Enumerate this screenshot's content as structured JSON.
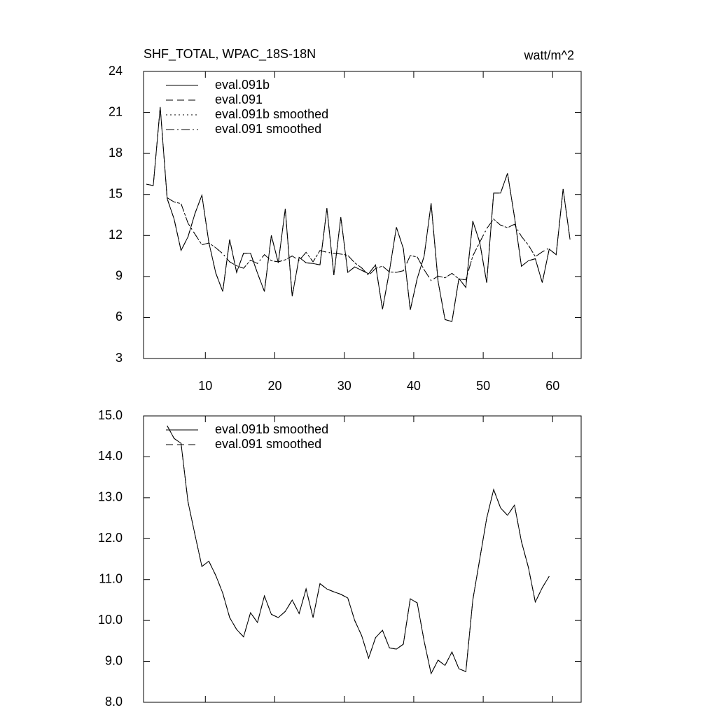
{
  "chart_data": [
    {
      "type": "line",
      "title": "SHF_TOTAL, WPAC_18S-18N",
      "subtitle": "watt/m^2",
      "legend": "upper left",
      "x": [
        1.5,
        2.5,
        3.5,
        4.5,
        5.5,
        6.5,
        7.5,
        8.5,
        9.5,
        10.5,
        11.5,
        12.5,
        13.5,
        14.5,
        15.5,
        16.5,
        17.5,
        18.5,
        19.5,
        20.5,
        21.5,
        22.5,
        23.5,
        24.5,
        25.5,
        26.5,
        27.5,
        28.5,
        29.5,
        30.5,
        31.5,
        32.5,
        33.5,
        34.5,
        35.5,
        36.5,
        37.5,
        38.5,
        39.5,
        40.5,
        41.5,
        42.5,
        43.5,
        44.5,
        45.5,
        46.5,
        47.5,
        48.5,
        49.5,
        50.5,
        51.5,
        52.5,
        53.5,
        54.5,
        55.5,
        56.5,
        57.5,
        58.5,
        59.5,
        60.5,
        61.5,
        62.5
      ],
      "xlim": [
        1.1,
        64.1
      ],
      "xticks": [
        10,
        20,
        30,
        40,
        50,
        60
      ],
      "ylim": [
        3,
        24
      ],
      "yticks": [
        3,
        6,
        9,
        12,
        15,
        18,
        21,
        24
      ],
      "series": [
        {
          "name": "eval.091b",
          "color": "#000000",
          "dash": "solid",
          "values": [
            15.75,
            15.65,
            21.4,
            14.7,
            13.2,
            10.9,
            11.9,
            13.6,
            14.95,
            11.5,
            9.25,
            7.9,
            11.7,
            9.3,
            10.7,
            10.7,
            9.25,
            7.9,
            12.0,
            10.0,
            13.95,
            7.55,
            10.4,
            10.0,
            9.95,
            9.85,
            14.0,
            9.1,
            13.35,
            9.3,
            9.7,
            9.45,
            9.2,
            9.85,
            6.6,
            9.4,
            12.6,
            11.05,
            6.55,
            8.85,
            10.5,
            14.35,
            8.65,
            5.85,
            5.7,
            8.85,
            8.2,
            13.05,
            11.5,
            8.55,
            15.1,
            15.1,
            16.55,
            13.35,
            9.75,
            10.15,
            10.3,
            8.55,
            11.0,
            10.6,
            15.4,
            11.7
          ]
        },
        {
          "name": "eval.091",
          "color": "#000000",
          "dash": "dashed",
          "values": [
            15.75,
            15.65,
            21.4,
            14.7,
            13.2,
            10.9,
            11.9,
            13.6,
            14.95,
            11.5,
            9.25,
            7.9,
            11.7,
            9.3,
            10.7,
            10.7,
            9.25,
            7.9,
            12.0,
            10.0,
            13.95,
            7.55,
            10.4,
            10.0,
            9.95,
            9.85,
            14.0,
            9.1,
            13.35,
            9.3,
            9.7,
            9.45,
            9.2,
            9.85,
            6.6,
            9.4,
            12.6,
            11.05,
            6.55,
            8.85,
            10.5,
            14.35,
            8.65,
            5.85,
            5.7,
            8.85,
            8.2,
            13.05,
            11.5,
            8.55,
            15.1,
            15.1,
            16.55,
            13.35,
            9.75,
            10.15,
            10.3,
            8.55,
            11.0,
            10.6,
            15.4,
            11.7
          ]
        },
        {
          "name": "eval.091b smoothed",
          "color": "#000000",
          "dash": "dotted",
          "values": [
            null,
            null,
            null,
            14.76,
            14.45,
            14.33,
            12.9,
            12.1,
            11.32,
            11.45,
            11.1,
            10.67,
            10.07,
            9.78,
            9.6,
            10.19,
            9.95,
            10.6,
            10.15,
            10.07,
            10.22,
            10.5,
            10.17,
            10.77,
            10.07,
            10.9,
            10.77,
            10.7,
            10.64,
            10.55,
            10.0,
            9.63,
            9.08,
            9.58,
            9.76,
            9.33,
            9.3,
            9.42,
            10.53,
            10.43,
            9.49,
            8.7,
            9.03,
            8.9,
            9.23,
            8.82,
            8.75,
            10.5,
            11.5,
            12.5,
            13.2,
            12.75,
            12.57,
            12.82,
            11.93,
            11.3,
            10.45,
            10.8,
            11.08,
            null,
            null,
            null
          ]
        },
        {
          "name": "eval.091 smoothed",
          "color": "#000000",
          "dash": "dashdot",
          "values": [
            null,
            null,
            null,
            14.76,
            14.45,
            14.33,
            12.9,
            12.1,
            11.32,
            11.45,
            11.1,
            10.67,
            10.07,
            9.78,
            9.6,
            10.19,
            9.95,
            10.6,
            10.15,
            10.07,
            10.22,
            10.5,
            10.17,
            10.77,
            10.07,
            10.9,
            10.77,
            10.7,
            10.64,
            10.55,
            10.0,
            9.63,
            9.08,
            9.58,
            9.76,
            9.33,
            9.3,
            9.42,
            10.53,
            10.43,
            9.49,
            8.7,
            9.03,
            8.9,
            9.23,
            8.82,
            8.75,
            10.5,
            11.5,
            12.5,
            13.2,
            12.75,
            12.57,
            12.82,
            11.93,
            11.3,
            10.45,
            10.8,
            11.08,
            null,
            null,
            null
          ]
        }
      ]
    },
    {
      "type": "line",
      "legend": "upper left",
      "x": [
        1.5,
        2.5,
        3.5,
        4.5,
        5.5,
        6.5,
        7.5,
        8.5,
        9.5,
        10.5,
        11.5,
        12.5,
        13.5,
        14.5,
        15.5,
        16.5,
        17.5,
        18.5,
        19.5,
        20.5,
        21.5,
        22.5,
        23.5,
        24.5,
        25.5,
        26.5,
        27.5,
        28.5,
        29.5,
        30.5,
        31.5,
        32.5,
        33.5,
        34.5,
        35.5,
        36.5,
        37.5,
        38.5,
        39.5,
        40.5,
        41.5,
        42.5,
        43.5,
        44.5,
        45.5,
        46.5,
        47.5,
        48.5,
        49.5,
        50.5,
        51.5,
        52.5,
        53.5,
        54.5,
        55.5,
        56.5,
        57.5,
        58.5,
        59.5,
        60.5,
        61.5,
        62.5
      ],
      "xlim": [
        1.1,
        64.1
      ],
      "ylim": [
        8,
        15
      ],
      "yticks": [
        {
          "value": 8,
          "label": "8.0"
        },
        {
          "value": 9,
          "label": "9.0"
        },
        {
          "value": 10,
          "label": "10.0"
        },
        {
          "value": 11,
          "label": "11.0"
        },
        {
          "value": 12,
          "label": "12.0"
        },
        {
          "value": 13,
          "label": "13.0"
        },
        {
          "value": 14,
          "label": "14.0"
        },
        {
          "value": 15,
          "label": "15.0"
        }
      ],
      "series": [
        {
          "name": "eval.091b smoothed",
          "color": "#000000",
          "dash": "solid",
          "values": [
            null,
            null,
            null,
            14.76,
            14.45,
            14.33,
            12.9,
            12.1,
            11.32,
            11.45,
            11.1,
            10.67,
            10.07,
            9.78,
            9.6,
            10.19,
            9.95,
            10.6,
            10.15,
            10.07,
            10.22,
            10.5,
            10.17,
            10.77,
            10.07,
            10.9,
            10.77,
            10.7,
            10.64,
            10.55,
            10.0,
            9.63,
            9.08,
            9.58,
            9.76,
            9.33,
            9.3,
            9.42,
            10.53,
            10.43,
            9.49,
            8.7,
            9.03,
            8.9,
            9.23,
            8.82,
            8.75,
            10.5,
            11.5,
            12.5,
            13.2,
            12.75,
            12.57,
            12.82,
            11.93,
            11.3,
            10.45,
            10.8,
            11.08,
            null,
            null,
            null
          ]
        },
        {
          "name": "eval.091 smoothed",
          "color": "#000000",
          "dash": "dashed",
          "values": [
            null,
            null,
            null,
            14.76,
            14.45,
            14.33,
            12.9,
            12.1,
            11.32,
            11.45,
            11.1,
            10.67,
            10.07,
            9.78,
            9.6,
            10.19,
            9.95,
            10.6,
            10.15,
            10.07,
            10.22,
            10.5,
            10.17,
            10.77,
            10.07,
            10.9,
            10.77,
            10.7,
            10.64,
            10.55,
            10.0,
            9.63,
            9.08,
            9.58,
            9.76,
            9.33,
            9.3,
            9.42,
            10.53,
            10.43,
            9.49,
            8.7,
            9.03,
            8.9,
            9.23,
            8.82,
            8.75,
            10.5,
            11.5,
            12.5,
            13.2,
            12.75,
            12.57,
            12.82,
            11.93,
            11.3,
            10.45,
            10.8,
            11.08,
            null,
            null,
            null
          ]
        }
      ]
    }
  ]
}
